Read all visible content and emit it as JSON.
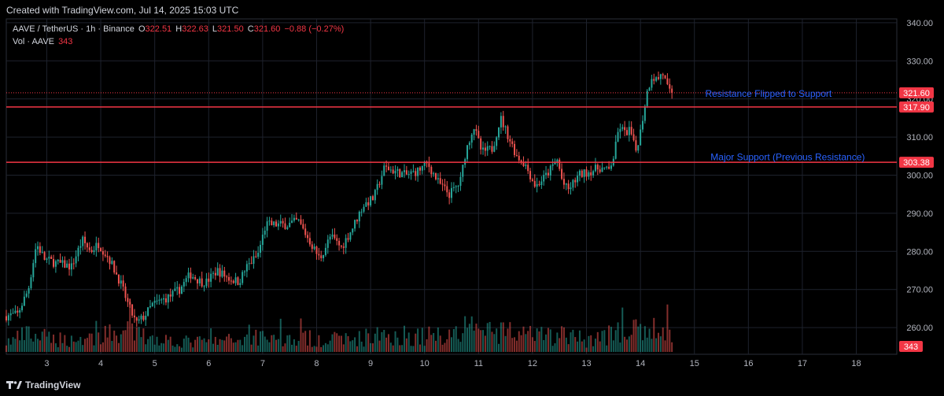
{
  "header": {
    "created_text": "Created with TradingView.com, Jul 14, 2025 15:03 UTC"
  },
  "legend": {
    "symbol": "AAVE / TetherUS · 1h · Binance",
    "o_label": "O",
    "o_value": "322.51",
    "h_label": "H",
    "h_value": "322.63",
    "l_label": "L",
    "l_value": "321.50",
    "c_label": "C",
    "c_value": "321.60",
    "change": "−0.88 (−0.27%)",
    "vol_label": "Vol · AAVE",
    "vol_value": "343"
  },
  "footer": {
    "brand": "TradingView"
  },
  "colors": {
    "up": "#26a69a",
    "down": "#ef5350",
    "line": "#f23645",
    "annotation": "#2962ff",
    "grid": "#1e222d",
    "text": "#b2b5be"
  },
  "chart_data": {
    "type": "candlestick",
    "symbol": "AAVE / TetherUS",
    "interval": "1h",
    "exchange": "Binance",
    "ylim": [
      253,
      341
    ],
    "y_ticks": [
      260,
      270,
      280,
      290,
      300,
      310,
      320,
      330,
      340
    ],
    "y_tick_labels": [
      "260.00",
      "270.00",
      "280.00",
      "290.00",
      "300.00",
      "310.00",
      "320.00",
      "330.00",
      "340.00"
    ],
    "x_ticks": [
      3,
      4,
      5,
      6,
      7,
      8,
      9,
      10,
      11,
      12,
      13,
      14,
      15,
      16,
      17,
      18
    ],
    "x_tick_labels": [
      "3",
      "4",
      "5",
      "6",
      "7",
      "8",
      "9",
      "10",
      "11",
      "12",
      "13",
      "14",
      "15",
      "16",
      "17",
      "18"
    ],
    "xlim": [
      2.25,
      18.75
    ],
    "grid": true,
    "last_price": {
      "value": 321.6,
      "label": "321.60"
    },
    "last_volume": {
      "value": 343,
      "label": "343"
    },
    "horizontal_lines": [
      {
        "value": 317.9,
        "label": "317.90"
      },
      {
        "value": 303.38,
        "label": "303.38"
      }
    ],
    "annotations": [
      {
        "text": "Resistance Flipped to Support",
        "x": 15.2,
        "y": 320.5
      },
      {
        "text": "Major Support (Previous Resistance)",
        "x": 15.3,
        "y": 303.9
      }
    ],
    "price_path": [
      [
        2.25,
        263
      ],
      [
        2.5,
        263.5
      ],
      [
        2.7,
        270
      ],
      [
        2.85,
        282
      ],
      [
        3.0,
        278
      ],
      [
        3.2,
        277
      ],
      [
        3.5,
        276
      ],
      [
        3.7,
        283
      ],
      [
        3.85,
        280
      ],
      [
        4.0,
        282
      ],
      [
        4.2,
        278
      ],
      [
        4.4,
        272
      ],
      [
        4.55,
        266
      ],
      [
        4.7,
        261
      ],
      [
        4.85,
        263
      ],
      [
        5.0,
        266
      ],
      [
        5.3,
        268
      ],
      [
        5.5,
        270
      ],
      [
        5.7,
        274
      ],
      [
        5.9,
        272
      ],
      [
        6.0,
        272
      ],
      [
        6.2,
        275
      ],
      [
        6.4,
        273
      ],
      [
        6.6,
        272
      ],
      [
        6.75,
        276
      ],
      [
        6.95,
        279
      ],
      [
        7.1,
        287
      ],
      [
        7.3,
        287
      ],
      [
        7.5,
        287
      ],
      [
        7.7,
        288
      ],
      [
        7.9,
        283
      ],
      [
        8.1,
        278
      ],
      [
        8.3,
        284
      ],
      [
        8.5,
        281
      ],
      [
        8.7,
        286
      ],
      [
        8.9,
        292
      ],
      [
        9.1,
        294
      ],
      [
        9.3,
        302
      ],
      [
        9.5,
        301
      ],
      [
        9.7,
        300
      ],
      [
        9.9,
        301
      ],
      [
        10.1,
        303
      ],
      [
        10.3,
        298
      ],
      [
        10.5,
        295
      ],
      [
        10.7,
        298
      ],
      [
        10.8,
        306
      ],
      [
        10.95,
        313
      ],
      [
        11.1,
        306
      ],
      [
        11.3,
        307
      ],
      [
        11.45,
        315
      ],
      [
        11.6,
        310
      ],
      [
        11.75,
        305
      ],
      [
        11.9,
        303
      ],
      [
        12.1,
        297
      ],
      [
        12.3,
        300
      ],
      [
        12.5,
        304
      ],
      [
        12.6,
        298
      ],
      [
        12.7,
        296
      ],
      [
        12.9,
        300
      ],
      [
        13.1,
        301
      ],
      [
        13.3,
        302
      ],
      [
        13.45,
        301
      ],
      [
        13.55,
        305
      ],
      [
        13.65,
        313
      ],
      [
        13.75,
        311
      ],
      [
        13.85,
        312
      ],
      [
        13.95,
        306
      ],
      [
        14.05,
        312
      ],
      [
        14.15,
        321
      ],
      [
        14.25,
        326
      ],
      [
        14.35,
        325
      ],
      [
        14.45,
        327
      ],
      [
        14.55,
        322.51
      ],
      [
        14.58,
        321.6
      ]
    ],
    "candle_range": [
      2.25,
      14.6
    ],
    "candles_per_day": 24,
    "volume_max_label_units": 1,
    "volume_profile": [
      [
        2.3,
        0.3
      ],
      [
        2.6,
        0.5
      ],
      [
        3.0,
        0.4
      ],
      [
        3.5,
        0.35
      ],
      [
        4.0,
        0.45
      ],
      [
        4.5,
        0.6
      ],
      [
        4.8,
        0.45
      ],
      [
        5.5,
        0.3
      ],
      [
        6.0,
        0.3
      ],
      [
        6.5,
        0.35
      ],
      [
        7.0,
        0.5
      ],
      [
        7.5,
        0.35
      ],
      [
        8.0,
        0.4
      ],
      [
        8.5,
        0.35
      ],
      [
        9.0,
        0.45
      ],
      [
        9.5,
        0.5
      ],
      [
        10.0,
        0.45
      ],
      [
        10.5,
        0.55
      ],
      [
        10.9,
        0.7
      ],
      [
        11.3,
        0.55
      ],
      [
        11.7,
        0.5
      ],
      [
        12.2,
        0.45
      ],
      [
        12.6,
        0.5
      ],
      [
        13.0,
        0.35
      ],
      [
        13.5,
        0.55
      ],
      [
        14.0,
        0.6
      ],
      [
        14.3,
        0.65
      ],
      [
        14.6,
        0.5
      ]
    ]
  }
}
